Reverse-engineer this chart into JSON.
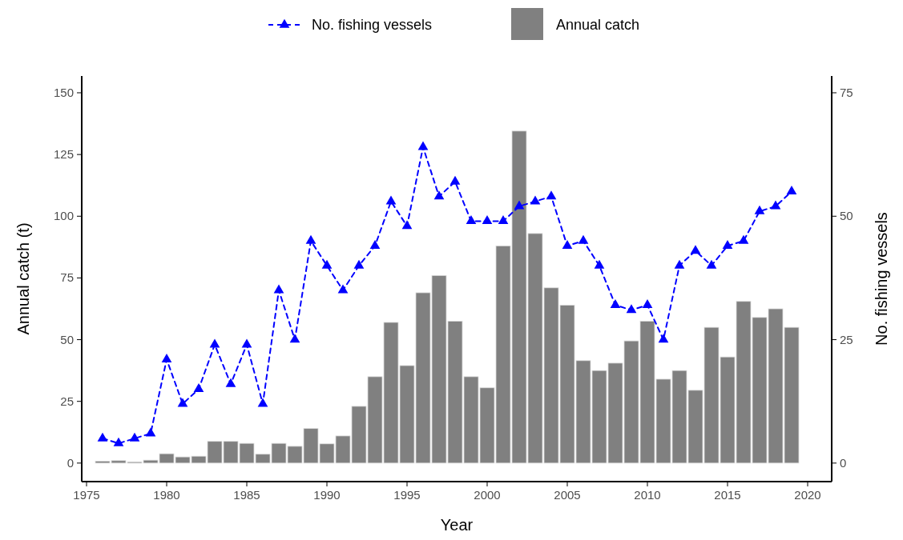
{
  "chart_data": {
    "type": "bar",
    "xlabel": "Year",
    "ylabel": "Annual catch (t)",
    "y2label": "No. fishing vessels",
    "x": [
      1976,
      1977,
      1978,
      1979,
      1980,
      1981,
      1982,
      1983,
      1984,
      1985,
      1986,
      1987,
      1988,
      1989,
      1990,
      1991,
      1992,
      1993,
      1994,
      1995,
      1996,
      1997,
      1998,
      1999,
      2000,
      2001,
      2002,
      2003,
      2004,
      2005,
      2006,
      2007,
      2008,
      2009,
      2010,
      2011,
      2012,
      2013,
      2014,
      2015,
      2016,
      2017,
      2018,
      2019
    ],
    "series": [
      {
        "name": "No. fishing vessels",
        "type": "line",
        "axis": "y2",
        "color": "#0000ff",
        "marker": "triangle",
        "line_style": "dashed",
        "values": [
          5,
          4,
          5,
          6,
          21,
          12,
          15,
          24,
          16,
          24,
          12,
          35,
          25,
          45,
          40,
          35,
          40,
          44,
          53,
          48,
          64,
          54,
          57,
          49,
          49,
          49,
          52,
          53,
          54,
          44,
          45,
          40,
          32,
          31,
          32,
          25,
          40,
          43,
          40,
          44,
          45,
          51,
          52,
          55
        ]
      },
      {
        "name": "Annual catch",
        "color": "#808080",
        "values": [
          0.8,
          1,
          0.5,
          1.2,
          3.8,
          2.5,
          2.8,
          8.8,
          8.8,
          8,
          3.6,
          8,
          6.8,
          14,
          7.8,
          11,
          23,
          35,
          57,
          39.5,
          69,
          76,
          57.5,
          35,
          30.5,
          88,
          134.5,
          93,
          71,
          64,
          41.5,
          37.5,
          40.5,
          49.5,
          57.5,
          34,
          37.5,
          29.5,
          55,
          43,
          65.5,
          59,
          62.5,
          55
        ]
      }
    ],
    "xlim": [
      1974.7,
      2021.5
    ],
    "xticks": [
      1975,
      1980,
      1985,
      1990,
      1995,
      2000,
      2005,
      2010,
      2015,
      2020
    ],
    "ylim": [
      -7.5,
      156.8
    ],
    "yticks": [
      0,
      25,
      50,
      75,
      100,
      125,
      150
    ],
    "y2lim": [
      -3.75,
      78.4
    ],
    "y2ticks": [
      0,
      25,
      50,
      75
    ],
    "legend": "top",
    "grid": false
  }
}
